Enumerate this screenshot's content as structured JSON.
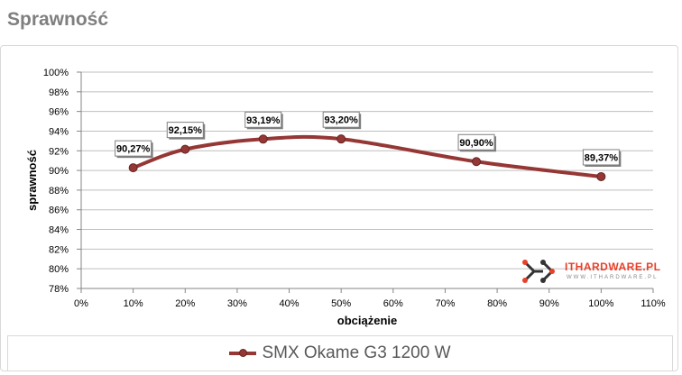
{
  "title": "Sprawność",
  "chart_data": {
    "type": "line",
    "xlabel": "obciążenie",
    "ylabel": "sprawność",
    "x_ticks": [
      "0%",
      "10%",
      "20%",
      "30%",
      "40%",
      "50%",
      "60%",
      "70%",
      "80%",
      "90%",
      "100%",
      "110%"
    ],
    "y_ticks": [
      "78%",
      "80%",
      "82%",
      "84%",
      "86%",
      "88%",
      "90%",
      "92%",
      "94%",
      "96%",
      "98%",
      "100%"
    ],
    "xlim": [
      0,
      110
    ],
    "ylim": [
      78,
      100
    ],
    "grid": true,
    "legend": "bottom",
    "series": [
      {
        "name": "SMX Okame G3 1200 W",
        "color": "#953735",
        "x": [
          10,
          20,
          35,
          50,
          76,
          100
        ],
        "y": [
          90.27,
          92.15,
          93.19,
          93.2,
          90.9,
          89.37
        ],
        "labels": [
          "90,27%",
          "92,15%",
          "93,19%",
          "93,20%",
          "90,90%",
          "89,37%"
        ]
      }
    ]
  },
  "watermark": {
    "brand": "ITHARDWARE.PL",
    "sub": "WWW.ITHARDWARE.PL"
  }
}
